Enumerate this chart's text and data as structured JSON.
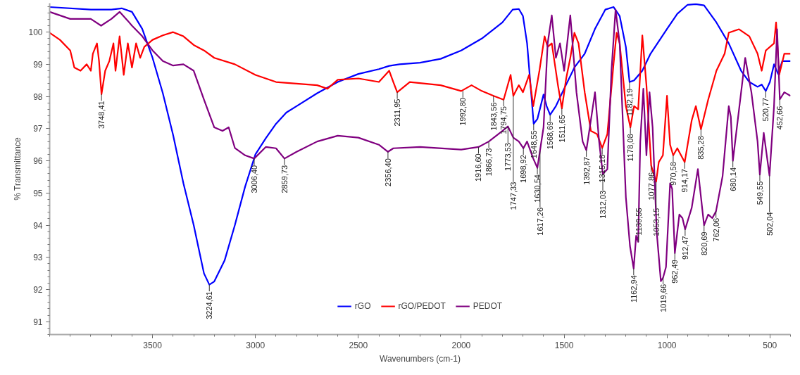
{
  "chart_data": {
    "type": "line",
    "xlabel": "Wavenumbers (cm-1)",
    "ylabel": "% Transmittance",
    "xlim": [
      4000,
      400
    ],
    "ylim": [
      90.6,
      100.9
    ],
    "xticks": [
      3500,
      3000,
      2500,
      2000,
      1500,
      1000,
      500
    ],
    "yticks": [
      91,
      92,
      93,
      94,
      95,
      96,
      97,
      98,
      99,
      100
    ],
    "grid": false,
    "legend": "bottom",
    "line_style": "solid",
    "marker": "none",
    "series": [
      {
        "name": "rGO",
        "color": "#0000ff",
        "x": [
          4000,
          3800,
          3700,
          3650,
          3600,
          3550,
          3500,
          3450,
          3400,
          3350,
          3300,
          3270,
          3250,
          3224,
          3200,
          3150,
          3100,
          3050,
          3000,
          2950,
          2900,
          2850,
          2800,
          2700,
          2600,
          2500,
          2400,
          2350,
          2300,
          2200,
          2100,
          2000,
          1900,
          1800,
          1750,
          1720,
          1700,
          1680,
          1660,
          1648,
          1630,
          1600,
          1585,
          1568,
          1540,
          1500,
          1450,
          1400,
          1350,
          1300,
          1260,
          1230,
          1200,
          1182,
          1160,
          1120,
          1080,
          1000,
          950,
          900,
          860,
          820,
          760,
          700,
          640,
          600,
          560,
          540,
          520,
          500,
          480,
          460,
          440,
          400
        ],
        "values": [
          100.78,
          100.7,
          100.7,
          100.74,
          100.63,
          100.1,
          99.2,
          98.1,
          96.8,
          95.3,
          94.0,
          93.1,
          92.5,
          92.15,
          92.25,
          92.9,
          94.0,
          95.2,
          96.2,
          96.7,
          97.15,
          97.5,
          97.7,
          98.1,
          98.45,
          98.7,
          98.85,
          98.95,
          99.0,
          99.05,
          99.17,
          99.43,
          99.8,
          100.3,
          100.7,
          100.72,
          100.5,
          99.65,
          98.1,
          97.15,
          97.3,
          98.06,
          97.7,
          97.43,
          97.7,
          98.24,
          98.9,
          99.33,
          100.1,
          100.7,
          100.78,
          100.5,
          99.54,
          98.45,
          98.5,
          98.8,
          99.33,
          100.1,
          100.57,
          100.85,
          100.87,
          100.83,
          100.3,
          99.65,
          98.8,
          98.45,
          98.3,
          98.37,
          98.17,
          98.45,
          99.0,
          98.7,
          99.1,
          99.1
        ]
      },
      {
        "name": "rGO/PEDOT",
        "color": "#ff0000",
        "x": [
          4000,
          3950,
          3900,
          3880,
          3850,
          3820,
          3800,
          3790,
          3770,
          3760,
          3748,
          3730,
          3710,
          3690,
          3680,
          3660,
          3640,
          3620,
          3600,
          3580,
          3560,
          3540,
          3500,
          3450,
          3400,
          3350,
          3300,
          3250,
          3200,
          3100,
          3000,
          2900,
          2800,
          2700,
          2650,
          2600,
          2500,
          2400,
          2350,
          2330,
          2311,
          2250,
          2100,
          2000,
          1950,
          1900,
          1843,
          1794,
          1760,
          1747,
          1720,
          1700,
          1670,
          1650,
          1620,
          1595,
          1580,
          1560,
          1530,
          1511,
          1490,
          1470,
          1450,
          1430,
          1400,
          1370,
          1340,
          1315,
          1290,
          1260,
          1245,
          1230,
          1200,
          1178,
          1160,
          1140,
          1120,
          1100,
          1077,
          1053,
          1040,
          1020,
          1000,
          985,
          970,
          950,
          914,
          880,
          860,
          835,
          800,
          760,
          720,
          700,
          650,
          600,
          560,
          540,
          520,
          480,
          470,
          455,
          430,
          400
        ],
        "values": [
          99.98,
          99.76,
          99.43,
          98.9,
          98.8,
          99.0,
          98.8,
          99.33,
          99.65,
          99.1,
          98.07,
          98.8,
          99.1,
          99.65,
          98.8,
          99.87,
          98.67,
          99.65,
          98.9,
          99.65,
          99.2,
          99.54,
          99.76,
          99.9,
          100.0,
          99.87,
          99.6,
          99.43,
          99.2,
          99.0,
          98.67,
          98.45,
          98.4,
          98.35,
          98.24,
          98.52,
          98.56,
          98.45,
          98.8,
          98.45,
          98.13,
          98.45,
          98.35,
          98.17,
          98.35,
          98.17,
          98.02,
          97.9,
          98.67,
          98.02,
          98.35,
          98.13,
          98.67,
          97.7,
          98.8,
          99.87,
          99.54,
          99.65,
          98.35,
          97.63,
          98.56,
          99.2,
          99.98,
          99.65,
          98.13,
          96.93,
          96.83,
          96.4,
          96.83,
          99.0,
          99.98,
          99.65,
          97.7,
          97.04,
          97.7,
          97.6,
          99.9,
          98.35,
          95.85,
          95.35,
          95.96,
          96.17,
          98.02,
          96.5,
          96.17,
          96.39,
          95.96,
          97.26,
          97.7,
          96.98,
          97.9,
          98.8,
          99.33,
          99.98,
          100.09,
          99.87,
          99.33,
          98.8,
          99.43,
          99.65,
          100.3,
          98.67,
          99.33,
          99.33
        ]
      },
      {
        "name": "PEDOT",
        "color": "#800080",
        "x": [
          4000,
          3900,
          3800,
          3750,
          3700,
          3660,
          3620,
          3600,
          3550,
          3500,
          3450,
          3400,
          3350,
          3300,
          3250,
          3200,
          3160,
          3130,
          3100,
          3050,
          3006,
          2950,
          2900,
          2859,
          2800,
          2700,
          2600,
          2500,
          2400,
          2356,
          2330,
          2200,
          2000,
          1916,
          1866,
          1800,
          1773,
          1747,
          1720,
          1698,
          1680,
          1650,
          1630,
          1600,
          1580,
          1560,
          1540,
          1520,
          1500,
          1470,
          1440,
          1410,
          1392,
          1370,
          1350,
          1330,
          1312,
          1290,
          1270,
          1250,
          1230,
          1200,
          1180,
          1162,
          1150,
          1140,
          1130,
          1115,
          1100,
          1085,
          1070,
          1050,
          1030,
          1019,
          1005,
          985,
          975,
          962,
          940,
          925,
          912,
          880,
          850,
          820,
          800,
          780,
          762,
          730,
          700,
          690,
          680,
          640,
          620,
          590,
          560,
          549,
          530,
          502,
          480,
          465,
          452,
          430,
          400
        ],
        "values": [
          100.63,
          100.41,
          100.41,
          100.2,
          100.41,
          100.63,
          100.35,
          100.2,
          99.87,
          99.43,
          99.1,
          98.96,
          99.0,
          98.8,
          97.9,
          97.04,
          96.93,
          97.04,
          96.4,
          96.17,
          96.07,
          96.43,
          96.39,
          96.07,
          96.28,
          96.6,
          96.78,
          96.72,
          96.5,
          96.28,
          96.39,
          96.43,
          96.35,
          96.43,
          96.6,
          96.93,
          97.07,
          96.72,
          96.6,
          96.39,
          96.6,
          96.07,
          95.78,
          97.04,
          99.65,
          100.52,
          99.2,
          99.65,
          98.8,
          100.52,
          98.13,
          96.6,
          96.33,
          97.26,
          98.13,
          96.6,
          95.59,
          95.74,
          98.8,
          100.7,
          99.65,
          94.87,
          93.35,
          92.65,
          93.67,
          93.48,
          96.6,
          98.24,
          96.17,
          98.13,
          97.04,
          93.78,
          92.26,
          92.37,
          92.7,
          95.3,
          95.13,
          93.13,
          94.33,
          94.22,
          93.87,
          94.54,
          95.74,
          94.0,
          94.33,
          94.22,
          94.43,
          95.52,
          97.7,
          97.37,
          96.0,
          98.13,
          99.2,
          98.13,
          96.6,
          95.57,
          96.87,
          95.54,
          97.7,
          100.09,
          97.91,
          98.13,
          98.02
        ]
      }
    ],
    "annotations": [
      {
        "text": "3748,41",
        "x": 3748,
        "y": 98.07
      },
      {
        "text": "3224,61",
        "x": 3224,
        "y": 92.15
      },
      {
        "text": "3006,40",
        "x": 3006,
        "y": 96.07
      },
      {
        "text": "2859,73",
        "x": 2859,
        "y": 96.07
      },
      {
        "text": "2356,40",
        "x": 2356,
        "y": 96.28
      },
      {
        "text": "2311,95",
        "x": 2311,
        "y": 98.13
      },
      {
        "text": "1992,80",
        "x": 1992,
        "y": 98.17
      },
      {
        "text": "1916,60",
        "x": 1916,
        "y": 96.43
      },
      {
        "text": "1866,73",
        "x": 1866,
        "y": 96.6
      },
      {
        "text": "1843,56",
        "x": 1843,
        "y": 98.02
      },
      {
        "text": "1794,75",
        "x": 1794,
        "y": 97.9
      },
      {
        "text": "1773,53",
        "x": 1773,
        "y": 97.07
      },
      {
        "text": "1747,33",
        "x": 1747,
        "y": 98.02
      },
      {
        "text": "1698,92",
        "x": 1698,
        "y": 96.39
      },
      {
        "text": "1648,55",
        "x": 1648,
        "y": 97.15
      },
      {
        "text": "1630,54",
        "x": 1630,
        "y": 95.78
      },
      {
        "text": "1617,26",
        "x": 1617,
        "y": 96.3
      },
      {
        "text": "1568,69",
        "x": 1568,
        "y": 97.43
      },
      {
        "text": "1511,65",
        "x": 1511,
        "y": 97.63
      },
      {
        "text": "1392,87",
        "x": 1392,
        "y": 96.33
      },
      {
        "text": "1315,18",
        "x": 1315,
        "y": 96.4
      },
      {
        "text": "1312,03",
        "x": 1312,
        "y": 95.59
      },
      {
        "text": "1182,19",
        "x": 1182,
        "y": 98.45
      },
      {
        "text": "1178,08",
        "x": 1178,
        "y": 97.04
      },
      {
        "text": "1162,94",
        "x": 1162,
        "y": 92.65
      },
      {
        "text": "1139,55",
        "x": 1139,
        "y": 93.48
      },
      {
        "text": "1077,86",
        "x": 1077,
        "y": 95.85
      },
      {
        "text": "1053,15",
        "x": 1053,
        "y": 95.35
      },
      {
        "text": "1019,66",
        "x": 1019,
        "y": 92.37
      },
      {
        "text": "970,58",
        "x": 970,
        "y": 96.17
      },
      {
        "text": "962,49",
        "x": 962,
        "y": 93.13
      },
      {
        "text": "914,17",
        "x": 914,
        "y": 95.96
      },
      {
        "text": "912,47",
        "x": 912,
        "y": 93.87
      },
      {
        "text": "835,28",
        "x": 835,
        "y": 96.98
      },
      {
        "text": "820,69",
        "x": 820,
        "y": 94.0
      },
      {
        "text": "762,06",
        "x": 762,
        "y": 94.43
      },
      {
        "text": "680,14",
        "x": 680,
        "y": 96.0
      },
      {
        "text": "549,55",
        "x": 549,
        "y": 95.57
      },
      {
        "text": "520,77",
        "x": 520,
        "y": 98.17
      },
      {
        "text": "502,04",
        "x": 502,
        "y": 95.54
      },
      {
        "text": "452,66",
        "x": 452,
        "y": 97.91
      }
    ]
  }
}
